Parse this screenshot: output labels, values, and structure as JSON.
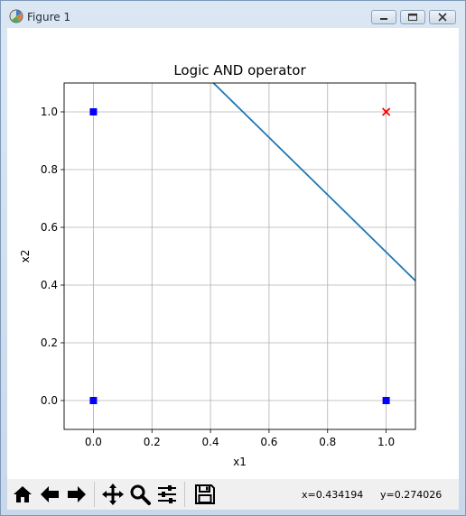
{
  "window": {
    "title": "Figure 1",
    "controls": [
      "minimize",
      "maximize",
      "close"
    ]
  },
  "toolbar": {
    "buttons": [
      {
        "name": "home",
        "icon": "home-icon"
      },
      {
        "name": "back",
        "icon": "arrow-left-icon"
      },
      {
        "name": "forward",
        "icon": "arrow-right-icon"
      },
      {
        "name": "pan",
        "icon": "move-icon"
      },
      {
        "name": "zoom",
        "icon": "magnifier-icon"
      },
      {
        "name": "configure-subplots",
        "icon": "sliders-icon"
      },
      {
        "name": "save",
        "icon": "floppy-disk-icon"
      }
    ],
    "x_readout": "x=0.434194",
    "y_readout": "y=0.274026"
  },
  "chart_data": {
    "type": "scatter",
    "title": "Logic AND operator",
    "xlabel": "x1",
    "ylabel": "x2",
    "xlim": [
      -0.1,
      1.1
    ],
    "ylim": [
      -0.1,
      1.1
    ],
    "xticks": [
      "0.0",
      "0.2",
      "0.4",
      "0.6",
      "0.8",
      "1.0"
    ],
    "yticks": [
      "0.0",
      "0.2",
      "0.4",
      "0.6",
      "0.8",
      "1.0"
    ],
    "xtick_values": [
      0,
      0.2,
      0.4,
      0.6,
      0.8,
      1.0
    ],
    "ytick_values": [
      0,
      0.2,
      0.4,
      0.6,
      0.8,
      1.0
    ],
    "grid": true,
    "points": [
      {
        "x": 0,
        "y": 0,
        "marker": "square",
        "color": "#0000ff"
      },
      {
        "x": 0,
        "y": 1,
        "marker": "square",
        "color": "#0000ff"
      },
      {
        "x": 1,
        "y": 0,
        "marker": "square",
        "color": "#0000ff"
      },
      {
        "x": 1,
        "y": 1,
        "marker": "x",
        "color": "#ff0000"
      }
    ],
    "line": {
      "color": "#1f77b4",
      "x": [
        0.41,
        1.1
      ],
      "y": [
        1.1,
        0.415
      ]
    }
  }
}
